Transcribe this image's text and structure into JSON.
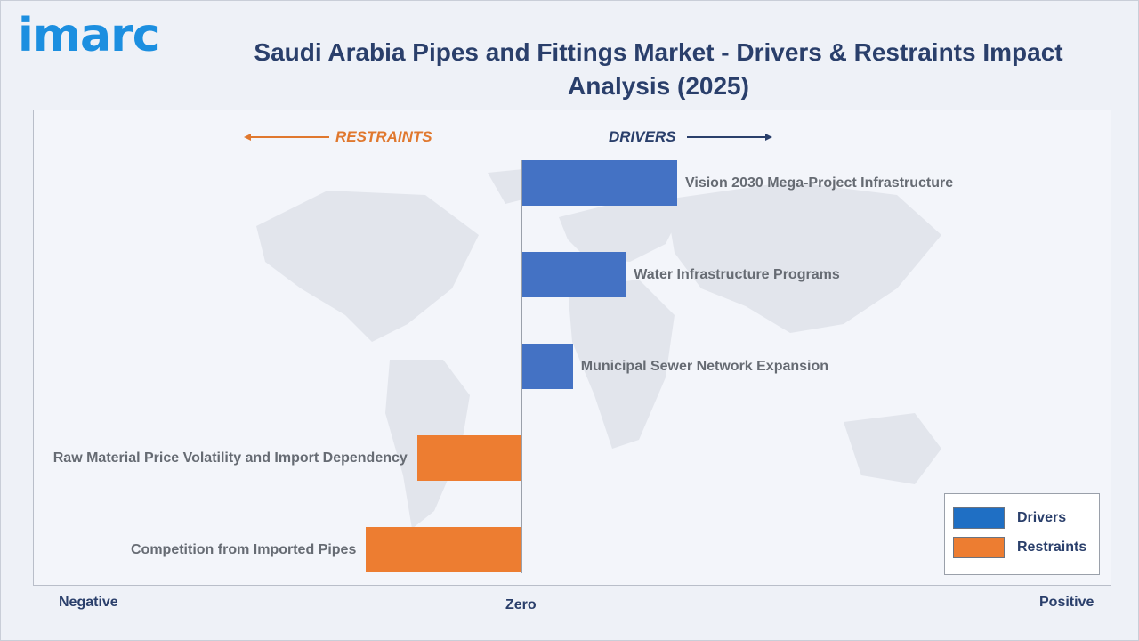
{
  "brand": {
    "logo_text": "imarc"
  },
  "title": "Saudi Arabia Pipes and Fittings Market - Drivers & Restraints Impact Analysis (2025)",
  "direction_labels": {
    "restraints": "RESTRAINTS",
    "drivers": "DRIVERS"
  },
  "axis_labels": {
    "negative": "Negative",
    "zero": "Zero",
    "positive": "Positive"
  },
  "legend": [
    {
      "label": "Drivers",
      "color": "#1f6fc4"
    },
    {
      "label": "Restraints",
      "color": "#ed7d31"
    }
  ],
  "colors": {
    "drivers_bar": "#4472c4",
    "restraints_bar": "#ed7d31",
    "title": "#2a3f6b",
    "logo": "#1c8fe0"
  },
  "chart_data": {
    "type": "bar",
    "orientation": "horizontal",
    "title": "Saudi Arabia Pipes and Fittings Market - Drivers & Restraints Impact Analysis (2025)",
    "xlim": [
      -3,
      3
    ],
    "categories": [
      "Vision 2030 Mega-Project Infrastructure",
      "Water Infrastructure Programs",
      "Municipal Sewer Network Expansion",
      "Raw Material Price Volatility and Import Dependency",
      "Competition from Imported Pipes"
    ],
    "series": [
      {
        "name": "Drivers",
        "values": [
          1.0,
          0.67,
          0.33,
          null,
          null
        ]
      },
      {
        "name": "Restraints",
        "values": [
          null,
          null,
          null,
          -0.67,
          -1.0
        ]
      }
    ],
    "legend_position": "bottom-right",
    "grid": false
  }
}
